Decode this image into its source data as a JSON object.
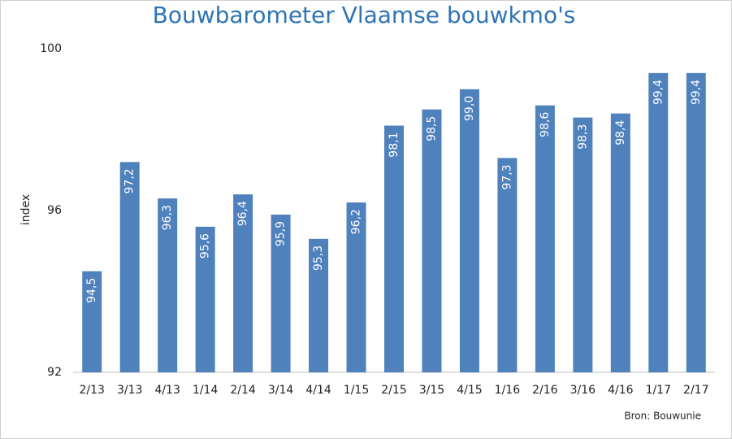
{
  "chart_data": {
    "type": "bar",
    "title": "Bouwbarometer Vlaamse bouwkmo's",
    "y_label": "index",
    "source": "Bron: Bouwunie",
    "categories": [
      "2/13",
      "3/13",
      "4/13",
      "1/14",
      "2/14",
      "3/14",
      "4/14",
      "1/15",
      "2/15",
      "3/15",
      "4/15",
      "1/16",
      "2/16",
      "3/16",
      "4/16",
      "1/17",
      "2/17"
    ],
    "values": [
      94.5,
      97.2,
      96.3,
      95.6,
      96.4,
      95.9,
      95.3,
      96.2,
      98.1,
      98.5,
      99.0,
      97.3,
      98.6,
      98.3,
      98.4,
      99.4,
      99.4
    ],
    "value_labels": [
      "94,5",
      "97,2",
      "96,3",
      "95,6",
      "96,4",
      "95,9",
      "95,3",
      "96,2",
      "98,1",
      "98,5",
      "99,0",
      "97,3",
      "98,6",
      "98,3",
      "98,4",
      "99,4",
      "99,4"
    ],
    "color": "#4f81bd",
    "ylim": [
      92,
      100
    ],
    "yticks": [
      92,
      96,
      100
    ],
    "grid": false
  }
}
